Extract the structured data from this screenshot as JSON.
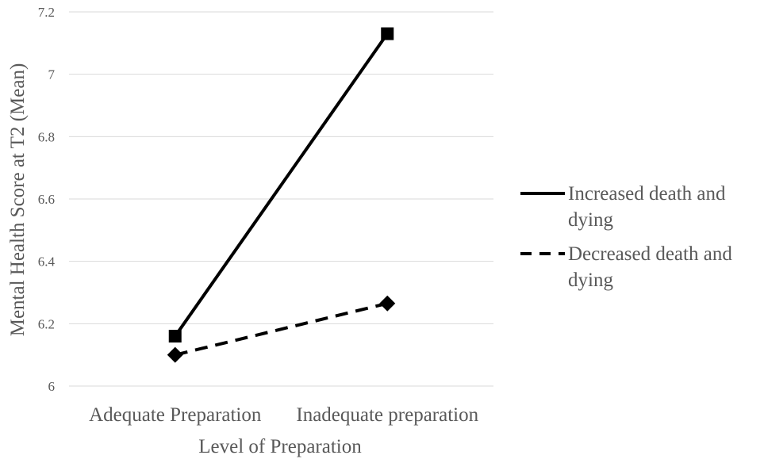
{
  "chart_data": {
    "type": "line",
    "categories": [
      "Adequate Preparation",
      "Inadequate preparation"
    ],
    "series": [
      {
        "name": "Increased death and dying",
        "name_lines": [
          "Increased death and",
          "dying"
        ],
        "values": [
          6.16,
          7.13
        ],
        "line_style": "solid",
        "marker": "square",
        "color": "#000000"
      },
      {
        "name": "Decreased death and dying",
        "name_lines": [
          "Decreased death and",
          "dying"
        ],
        "values": [
          6.1,
          6.265
        ],
        "line_style": "dashed",
        "marker": "diamond",
        "color": "#000000"
      }
    ],
    "xlabel": "Level of Preparation",
    "ylabel": "Mental Health Score at T2 (Mean)",
    "ylim": [
      6,
      7.2
    ],
    "yticks": [
      6,
      6.2,
      6.4,
      6.6,
      6.8,
      7,
      7.2
    ],
    "ytick_labels": [
      "6",
      "6.2",
      "6.4",
      "6.6",
      "6.8",
      "7",
      "7.2"
    ],
    "grid": true,
    "gridline_color": "#d9d9d9",
    "legend_position": "right"
  }
}
